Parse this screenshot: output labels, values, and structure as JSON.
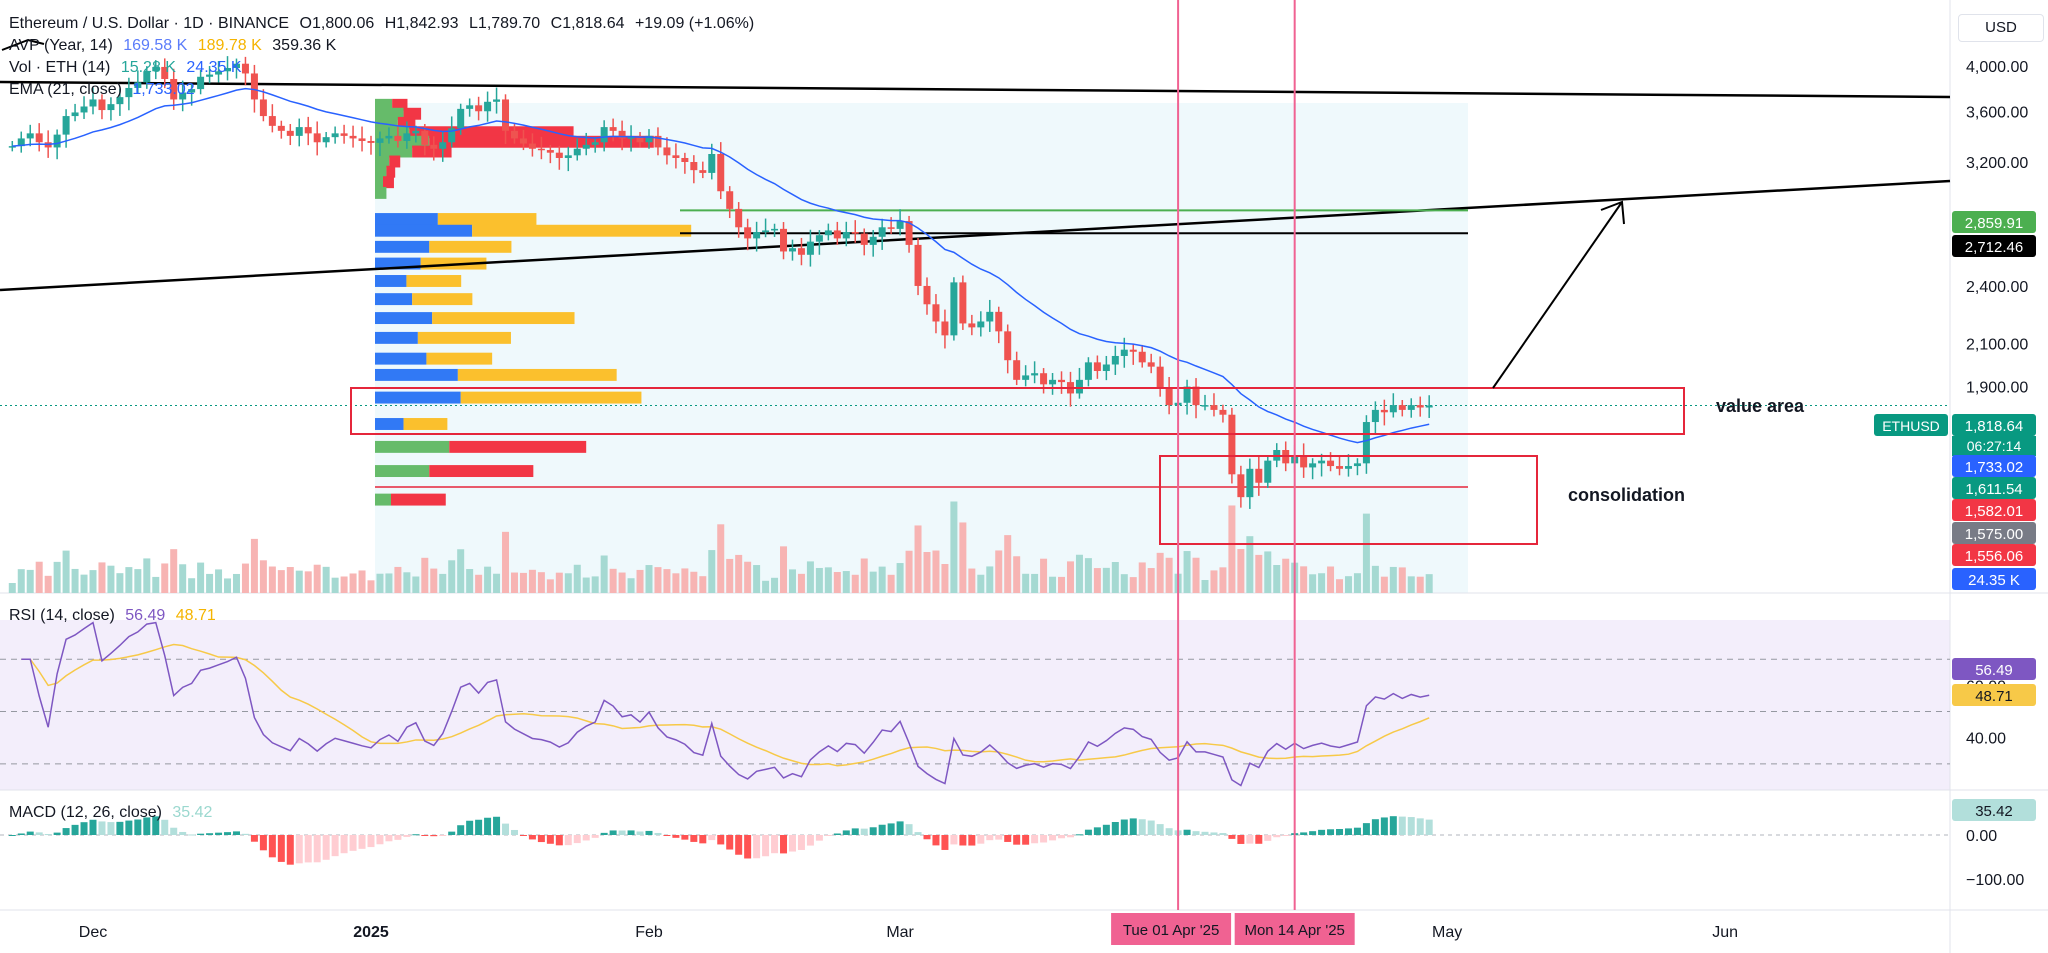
{
  "header": {
    "symbol": "Ethereum / U.S. Dollar · 1D · BINANCE",
    "open": "O1,800.06",
    "high": "H1,842.93",
    "low": "L1,789.70",
    "close": "C1,818.64",
    "change": "+19.09 (+1.06%)",
    "avp_label": "AVP (Year, 14)",
    "avp_v1": "169.58 K",
    "avp_v2": "189.78 K",
    "avp_v3": "359.36 K",
    "vol_label": "Vol · ETH (14)",
    "vol_v1": "15.28 K",
    "vol_v2": "24.35 K",
    "ema_label": "EMA (21, close)",
    "ema_value": "1,733.02"
  },
  "currency": "USD",
  "annotations": {
    "value_area": "value area",
    "consolidation": "consolidation"
  },
  "rsi": {
    "label": "RSI (14, close)",
    "value": "56.49",
    "ma": "48.71"
  },
  "macd": {
    "label": "MACD (12, 26, close)",
    "value": "35.42"
  },
  "colors": {
    "up": "#26a69a",
    "down": "#ef5350",
    "ema": "#2962ff",
    "rsi": "#7e57c2",
    "rsi_ma": "#f7c948",
    "vap_up": "#66bb6a",
    "vap_down": "#f23645",
    "vap_blue": "#3179f5",
    "vap_yellow": "#fbc02d",
    "box_red": "#e5263b",
    "vline": "#f06292",
    "level_green": "#4caf50"
  },
  "chart_data": {
    "type": "candlestick",
    "symbol": "ETHUSD",
    "interval": "1D",
    "ylim": [
      1250,
      4150
    ],
    "x_ticks": [
      "Dec",
      "2025",
      "Feb",
      "Mar",
      "Apr",
      "May",
      "Jun"
    ],
    "x_tick_dates": [
      "2024-12-01",
      "2025-01-01",
      "2025-02-01",
      "2025-03-01",
      "2025-04-01",
      "2025-05-01",
      "2025-06-01"
    ],
    "y_ticks": [
      "4,000.00",
      "3,600.00",
      "3,200.00",
      "2,400.00",
      "2,100.00",
      "1,900.00"
    ],
    "y_tick_values": [
      4000,
      3600,
      3200,
      2400,
      2100,
      1900
    ],
    "price_tags": [
      {
        "label": "2,859.91",
        "value": 2859.91,
        "color": "#4caf50"
      },
      {
        "label": "2,712.46",
        "value": 2712.46,
        "color": "#000000"
      },
      {
        "label": "1,818.64",
        "value": 1818.64,
        "color": "#089981",
        "name": "ETHUSD",
        "countdown": "06:27:14"
      },
      {
        "label": "1,733.02",
        "value": 1733.02,
        "color": "#2962ff"
      },
      {
        "label": "1,611.54",
        "value": 1611.54,
        "color": "#089981"
      },
      {
        "label": "1,582.01",
        "value": 1582.01,
        "color": "#f23645"
      },
      {
        "label": "1,575.00",
        "value": 1575.0,
        "color": "#787b86"
      },
      {
        "label": "1,556.06",
        "value": 1556.06,
        "color": "#f23645"
      },
      {
        "label": "24.35 K",
        "value": 24.35,
        "color": "#2962ff",
        "pane": "volume"
      }
    ],
    "vertical_markers": [
      {
        "date": "2025-04-01",
        "label": "Tue 01 Apr '25"
      },
      {
        "date": "2025-04-14",
        "label": "Mon 14 Apr '25"
      }
    ],
    "close_series": {
      "start_date": "2024-11-22",
      "values": [
        3320,
        3380,
        3420,
        3350,
        3310,
        3410,
        3560,
        3590,
        3640,
        3700,
        3610,
        3660,
        3720,
        3800,
        3850,
        3950,
        3990,
        3880,
        3700,
        3760,
        3790,
        3900,
        3920,
        3950,
        3980,
        4020,
        3930,
        3700,
        3560,
        3480,
        3440,
        3400,
        3470,
        3420,
        3350,
        3390,
        3420,
        3400,
        3380,
        3360,
        3345,
        3380,
        3400,
        3360,
        3420,
        3440,
        3330,
        3300,
        3350,
        3460,
        3620,
        3650,
        3600,
        3680,
        3700,
        3440,
        3380,
        3340,
        3300,
        3290,
        3270,
        3230,
        3250,
        3300,
        3330,
        3350,
        3470,
        3440,
        3380,
        3390,
        3350,
        3400,
        3310,
        3250,
        3230,
        3200,
        3140,
        3120,
        3260,
        2990,
        2870,
        2750,
        2680,
        2720,
        2730,
        2740,
        2600,
        2620,
        2580,
        2660,
        2700,
        2730,
        2680,
        2720,
        2710,
        2640,
        2690,
        2750,
        2740,
        2790,
        2640,
        2400,
        2300,
        2210,
        2140,
        2420,
        2200,
        2180,
        2210,
        2260,
        2160,
        2020,
        1930,
        1950,
        1960,
        1910,
        1930,
        1920,
        1870,
        1930,
        2010,
        1970,
        2000,
        2040,
        2070,
        2060,
        2010,
        1990,
        1890,
        1820,
        1830,
        1900,
        1820,
        1820,
        1800,
        1780,
        1550,
        1470,
        1570,
        1520,
        1600,
        1640,
        1590,
        1620,
        1575,
        1590,
        1600,
        1580,
        1570,
        1580,
        1590,
        1750,
        1800,
        1790,
        1820,
        1800,
        1820,
        1810,
        1818.64
      ]
    },
    "rsi_series": {
      "ylim": [
        20,
        85
      ],
      "ticks": [
        "60.00",
        "40.00"
      ],
      "tick_values": [
        60,
        40
      ],
      "bands": [
        70,
        50,
        30
      ],
      "last": 56.49,
      "ma_last": 48.71
    },
    "macd_series": {
      "ylim": [
        -120,
        50
      ],
      "ticks": [
        "0.00",
        "−100.00"
      ],
      "tick_values": [
        0,
        -100
      ],
      "last": 35.42
    },
    "volume_series": {
      "last_ma": "24.35 K"
    },
    "volume_profile": {
      "rows": [
        {
          "price": 3650,
          "up": 30,
          "down": 14
        },
        {
          "price": 3575,
          "up": 50,
          "down": 16
        },
        {
          "price": 3500,
          "up": 40,
          "down": 16
        },
        {
          "price": 3425,
          "up": 60,
          "down": 150
        },
        {
          "price": 3350,
          "up": 95,
          "down": 205
        },
        {
          "price": 3275,
          "up": 65,
          "down": 36
        },
        {
          "price": 3200,
          "up": 25,
          "down": 10
        },
        {
          "price": 3125,
          "up": 20,
          "down": 8
        },
        {
          "price": 3050,
          "up": 14,
          "down": 10
        },
        {
          "price": 2975,
          "up": 20,
          "down": 0
        },
        {
          "price": 2800,
          "up": 110,
          "down": 90
        },
        {
          "price": 2725,
          "up": 170,
          "down": 200
        },
        {
          "price": 2625,
          "up": 95,
          "down": 75
        },
        {
          "price": 2525,
          "up": 80,
          "down": 60
        },
        {
          "price": 2425,
          "up": 55,
          "down": 50
        },
        {
          "price": 2325,
          "up": 65,
          "down": 55
        },
        {
          "price": 2225,
          "up": 100,
          "down": 130
        },
        {
          "price": 2125,
          "up": 75,
          "down": 85
        },
        {
          "price": 2025,
          "up": 90,
          "down": 60
        },
        {
          "price": 1950,
          "up": 145,
          "down": 145
        },
        {
          "price": 1850,
          "up": 150,
          "down": 165
        },
        {
          "price": 1740,
          "up": 50,
          "down": 40
        },
        {
          "price": 1650,
          "up": 130,
          "down": 125
        },
        {
          "price": 1560,
          "up": 95,
          "down": 95
        },
        {
          "price": 1460,
          "up": 28,
          "down": 50
        }
      ]
    }
  }
}
